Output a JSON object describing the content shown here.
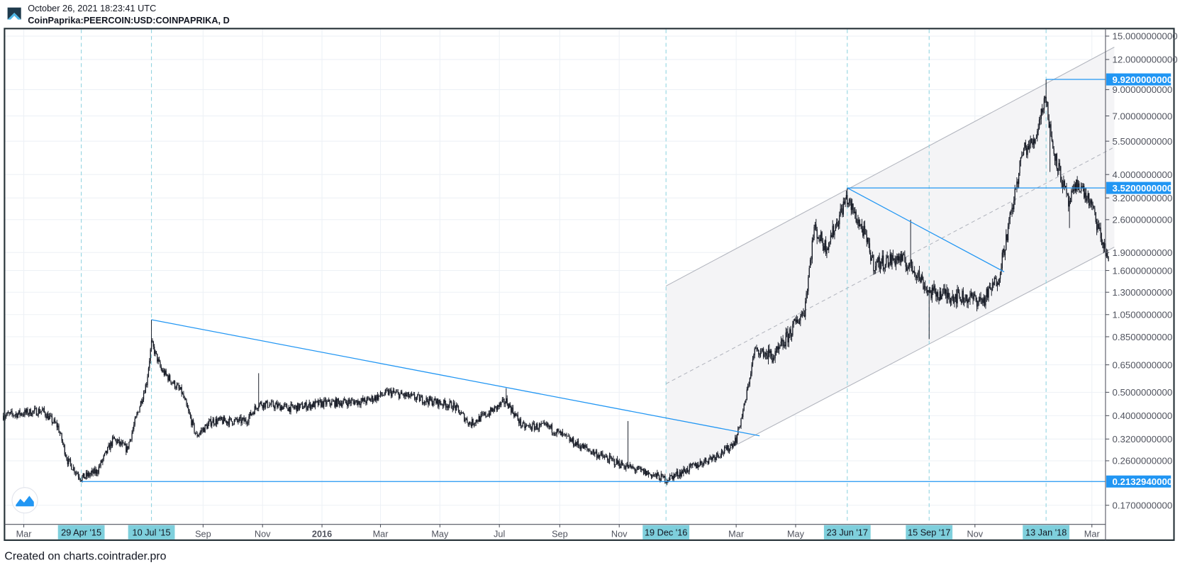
{
  "header": {
    "timestamp": "October 26, 2021 18:23:41 UTC",
    "symbol": "CoinPaprika:PEERCOIN:USD:COINPAPRIKA, D"
  },
  "footer": "Created on charts.cointrader.pro",
  "colors": {
    "candle": "#131722",
    "drawing": "#2196f3",
    "date_marker": "#7ecfdc",
    "channel": "#b2b5be",
    "channel_fill": "#f4f4f6",
    "grid": "#edf1f6"
  },
  "chart_data": {
    "type": "candlestick",
    "title": "CoinPaprika:PEERCOIN:USD:COINPAPRIKA, D",
    "scale": "log",
    "ylim": [
      0.15,
      15
    ],
    "xlim": [
      "2015-02-08",
      "2018-03-24"
    ],
    "grid": true,
    "y_ticks": [
      "15.0000000000",
      "12.0000000000",
      "9.0000000000",
      "7.0000000000",
      "5.5000000000",
      "4.0000000000",
      "3.2000000000",
      "2.6000000000",
      "1.9000000000",
      "1.6000000000",
      "1.3000000000",
      "1.0500000000",
      "0.8500000000",
      "0.6500000000",
      "0.5000000000",
      "0.4000000000",
      "0.3200000000",
      "0.2600000000",
      "0.1700000000"
    ],
    "x_ticks": [
      {
        "label": "Mar",
        "date": "2015-03-01",
        "bold": false
      },
      {
        "label": "Sep",
        "date": "2015-09-01",
        "bold": false
      },
      {
        "label": "Nov",
        "date": "2015-11-01",
        "bold": false
      },
      {
        "label": "2016",
        "date": "2016-01-01",
        "bold": true
      },
      {
        "label": "Mar",
        "date": "2016-03-01",
        "bold": false
      },
      {
        "label": "May",
        "date": "2016-05-01",
        "bold": false
      },
      {
        "label": "Jul",
        "date": "2016-07-01",
        "bold": false
      },
      {
        "label": "Sep",
        "date": "2016-09-01",
        "bold": false
      },
      {
        "label": "Nov",
        "date": "2016-11-01",
        "bold": false
      },
      {
        "label": "Mar",
        "date": "2017-03-01",
        "bold": false
      },
      {
        "label": "May",
        "date": "2017-05-01",
        "bold": false
      },
      {
        "label": "Nov",
        "date": "2017-11-01",
        "bold": false
      },
      {
        "label": "Mar",
        "date": "2018-03-01",
        "bold": false
      }
    ],
    "date_markers": [
      {
        "label": "29 Apr '15",
        "date": "2015-04-29"
      },
      {
        "label": "10 Jul '15",
        "date": "2015-07-10"
      },
      {
        "label": "19 Dec '16",
        "date": "2016-12-19"
      },
      {
        "label": "23 Jun '17",
        "date": "2017-06-23"
      },
      {
        "label": "15 Sep '17",
        "date": "2017-09-15"
      },
      {
        "label": "13 Jan '18",
        "date": "2018-01-13"
      }
    ],
    "price_levels": [
      {
        "label": "9.9200000000",
        "price": 9.92,
        "from": "2018-01-13"
      },
      {
        "label": "3.5200000000",
        "price": 3.52,
        "from": "2017-06-23"
      },
      {
        "label": "0.2132940000",
        "price": 0.213294,
        "from": "2015-04-29"
      }
    ],
    "trend_lines": [
      {
        "from": [
          "2015-07-10",
          1.0
        ],
        "to": [
          "2017-03-25",
          0.33
        ]
      },
      {
        "from": [
          "2017-06-23",
          3.52
        ],
        "to": [
          "2017-12-01",
          1.58
        ]
      }
    ],
    "channel": {
      "lower": {
        "from": [
          "2016-12-19",
          0.213
        ],
        "to": [
          "2018-03-24",
          2.0
        ]
      },
      "upper": {
        "from": [
          "2016-12-19",
          1.38
        ],
        "to": [
          "2018-03-24",
          13.5
        ]
      }
    },
    "price_path": [
      [
        "2015-02-08",
        0.4
      ],
      [
        "2015-03-01",
        0.41
      ],
      [
        "2015-03-20",
        0.42
      ],
      [
        "2015-04-05",
        0.36
      ],
      [
        "2015-04-15",
        0.26
      ],
      [
        "2015-04-29",
        0.22
      ],
      [
        "2015-05-15",
        0.235
      ],
      [
        "2015-06-01",
        0.32
      ],
      [
        "2015-06-15",
        0.29
      ],
      [
        "2015-06-25",
        0.4
      ],
      [
        "2015-07-05",
        0.55
      ],
      [
        "2015-07-10",
        0.8
      ],
      [
        "2015-07-20",
        0.62
      ],
      [
        "2015-08-10",
        0.5
      ],
      [
        "2015-08-25",
        0.33
      ],
      [
        "2015-09-10",
        0.38
      ],
      [
        "2015-10-15",
        0.38
      ],
      [
        "2015-10-28",
        0.45
      ],
      [
        "2015-12-01",
        0.43
      ],
      [
        "2016-01-01",
        0.45
      ],
      [
        "2016-02-15",
        0.46
      ],
      [
        "2016-03-10",
        0.5
      ],
      [
        "2016-04-10",
        0.47
      ],
      [
        "2016-05-15",
        0.44
      ],
      [
        "2016-06-01",
        0.37
      ],
      [
        "2016-06-20",
        0.41
      ],
      [
        "2016-07-08",
        0.46
      ],
      [
        "2016-07-25",
        0.36
      ],
      [
        "2016-08-20",
        0.36
      ],
      [
        "2016-09-15",
        0.31
      ],
      [
        "2016-10-15",
        0.27
      ],
      [
        "2016-11-10",
        0.245
      ],
      [
        "2016-12-19",
        0.218
      ],
      [
        "2017-01-20",
        0.25
      ],
      [
        "2017-02-20",
        0.29
      ],
      [
        "2017-03-01",
        0.32
      ],
      [
        "2017-03-10",
        0.45
      ],
      [
        "2017-03-20",
        0.75
      ],
      [
        "2017-04-10",
        0.7
      ],
      [
        "2017-04-30",
        0.95
      ],
      [
        "2017-05-10",
        1.1
      ],
      [
        "2017-05-20",
        2.4
      ],
      [
        "2017-06-01",
        2.0
      ],
      [
        "2017-06-10",
        2.4
      ],
      [
        "2017-06-22",
        3.2
      ],
      [
        "2017-07-10",
        2.3
      ],
      [
        "2017-07-20",
        1.7
      ],
      [
        "2017-08-15",
        1.8
      ],
      [
        "2017-09-01",
        1.6
      ],
      [
        "2017-09-15",
        1.3
      ],
      [
        "2017-10-15",
        1.25
      ],
      [
        "2017-11-10",
        1.2
      ],
      [
        "2017-11-25",
        1.5
      ],
      [
        "2017-12-10",
        3.0
      ],
      [
        "2017-12-20",
        5.0
      ],
      [
        "2018-01-01",
        5.5
      ],
      [
        "2018-01-12",
        8.5
      ],
      [
        "2018-01-20",
        5.2
      ],
      [
        "2018-02-05",
        3.0
      ],
      [
        "2018-02-15",
        3.7
      ],
      [
        "2018-02-28",
        3.0
      ],
      [
        "2018-03-15",
        1.9
      ],
      [
        "2018-03-18",
        1.8
      ]
    ],
    "spikes": [
      [
        "2015-07-10",
        1.0
      ],
      [
        "2015-10-28",
        0.6
      ],
      [
        "2016-07-08",
        0.52
      ],
      [
        "2016-11-10",
        0.38
      ],
      [
        "2017-06-23",
        3.52
      ],
      [
        "2017-08-27",
        2.6
      ],
      [
        "2017-09-15",
        0.83
      ],
      [
        "2018-01-13",
        9.92
      ],
      [
        "2018-01-17",
        4.1
      ],
      [
        "2018-02-06",
        2.4
      ]
    ]
  }
}
